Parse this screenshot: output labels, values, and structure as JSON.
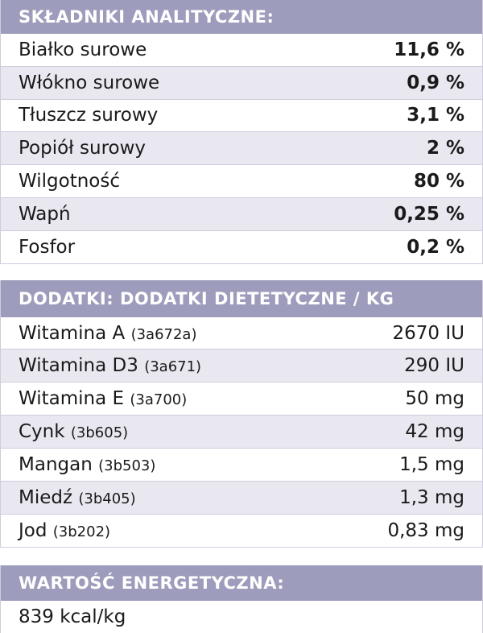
{
  "analytical": {
    "header": "SKŁADNIKI ANALITYCZNE:",
    "rows": [
      {
        "name": "Białko surowe",
        "value": "11,6 %"
      },
      {
        "name": "Włókno surowe",
        "value": "0,9 %"
      },
      {
        "name": "Tłuszcz surowy",
        "value": "3,1 %"
      },
      {
        "name": "Popiół surowy",
        "value": "2 %"
      },
      {
        "name": "Wilgotność",
        "value": "80 %"
      },
      {
        "name": "Wapń",
        "value": "0,25 %"
      },
      {
        "name": "Fosfor",
        "value": "0,2 %"
      }
    ]
  },
  "additives": {
    "header": "DODATKI: DODATKI DIETETYCZNE / KG",
    "rows": [
      {
        "name": "Witamina A",
        "code": "(3a672a)",
        "value": "2670 IU"
      },
      {
        "name": "Witamina D3",
        "code": "(3a671)",
        "value": "290 IU"
      },
      {
        "name": "Witamina E",
        "code": "(3a700)",
        "value": "50 mg"
      },
      {
        "name": "Cynk",
        "code": "(3b605)",
        "value": "42 mg"
      },
      {
        "name": "Mangan",
        "code": "(3b503)",
        "value": "1,5 mg"
      },
      {
        "name": "Miedź",
        "code": "(3b405)",
        "value": "1,3 mg"
      },
      {
        "name": "Jod",
        "code": "(3b202)",
        "value": "0,83 mg"
      }
    ]
  },
  "energy": {
    "header": "WARTOŚĆ ENERGETYCZNA:",
    "value": "839 kcal/kg"
  }
}
